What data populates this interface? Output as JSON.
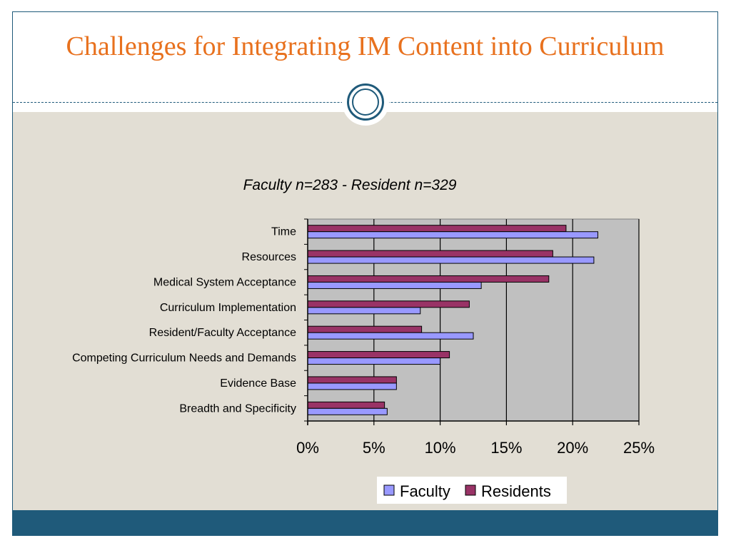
{
  "slide": {
    "title": "Challenges for Integrating IM Content into Curriculum"
  },
  "colors": {
    "title": "#e8711e",
    "accent": "#1f5a7a",
    "content_background": "#e2ded4",
    "plot_background": "#c0c0c0",
    "faculty": "#9999ff",
    "residents": "#993366"
  },
  "chart_data": {
    "type": "bar",
    "orientation": "horizontal",
    "title": "Faculty n=283 - Resident n=329",
    "categories": [
      "Time",
      "Resources",
      "Medical System Acceptance",
      "Curriculum Implementation",
      "Resident/Faculty Acceptance",
      "Competing Curriculum Needs and Demands",
      "Evidence Base",
      "Breadth and Specificity"
    ],
    "series": [
      {
        "name": "Residents",
        "color": "#993366",
        "values": [
          19.5,
          18.5,
          18.2,
          12.2,
          8.6,
          10.7,
          6.7,
          5.8
        ]
      },
      {
        "name": "Faculty",
        "color": "#9999ff",
        "values": [
          21.9,
          21.6,
          13.1,
          8.5,
          12.5,
          10.0,
          6.7,
          6.0
        ]
      }
    ],
    "xlim": [
      0,
      25
    ],
    "xticks": [
      "0%",
      "5%",
      "10%",
      "15%",
      "20%",
      "25%"
    ],
    "xtick_values": [
      0,
      5,
      10,
      15,
      20,
      25
    ],
    "grid": "vertical",
    "legend": {
      "position": "bottom",
      "entries": [
        {
          "label": "Faculty",
          "color": "#9999ff"
        },
        {
          "label": "Residents",
          "color": "#993366"
        }
      ]
    }
  }
}
